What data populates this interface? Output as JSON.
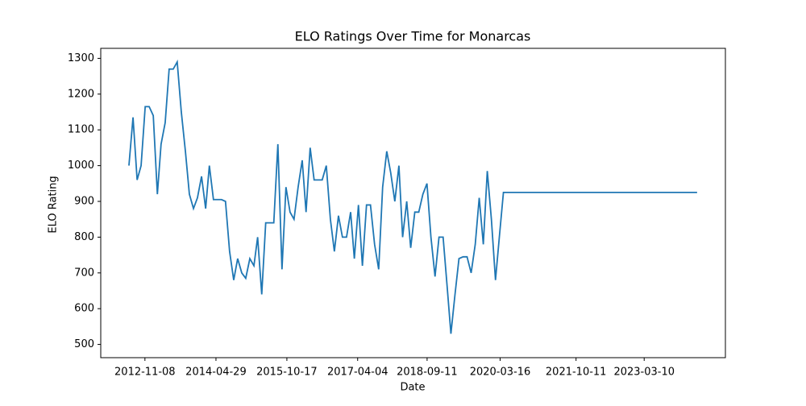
{
  "chart_data": {
    "type": "line",
    "title": "ELO Ratings Over Time for Monarcas",
    "x_label": "Date",
    "y_label": "ELO Rating",
    "x": [
      "2012-07-10",
      "2012-08-10",
      "2012-09-10",
      "2012-10-10",
      "2012-11-10",
      "2012-12-10",
      "2013-01-10",
      "2013-02-10",
      "2013-03-10",
      "2013-04-10",
      "2013-05-10",
      "2013-06-10",
      "2013-07-10",
      "2013-08-10",
      "2013-09-10",
      "2013-10-10",
      "2013-11-10",
      "2013-12-10",
      "2014-01-10",
      "2014-02-10",
      "2014-03-10",
      "2014-04-10",
      "2014-05-10",
      "2014-06-10",
      "2014-07-10",
      "2014-08-10",
      "2014-09-10",
      "2014-10-10",
      "2014-11-10",
      "2014-12-10",
      "2015-01-10",
      "2015-02-10",
      "2015-03-10",
      "2015-04-10",
      "2015-05-10",
      "2015-06-10",
      "2015-07-10",
      "2015-08-10",
      "2015-09-10",
      "2015-10-10",
      "2015-11-10",
      "2015-12-10",
      "2016-01-10",
      "2016-02-10",
      "2016-03-10",
      "2016-04-10",
      "2016-05-10",
      "2016-06-10",
      "2016-07-10",
      "2016-08-10",
      "2016-09-10",
      "2016-10-10",
      "2016-11-10",
      "2016-12-10",
      "2017-01-10",
      "2017-02-10",
      "2017-03-10",
      "2017-04-10",
      "2017-05-10",
      "2017-06-10",
      "2017-07-10",
      "2017-08-10",
      "2017-09-10",
      "2017-10-10",
      "2017-11-10",
      "2017-12-10",
      "2018-01-10",
      "2018-02-10",
      "2018-03-10",
      "2018-04-10",
      "2018-05-10",
      "2018-06-10",
      "2018-07-10",
      "2018-08-10",
      "2018-09-10",
      "2018-10-10",
      "2018-11-10",
      "2018-12-10",
      "2019-01-10",
      "2019-02-10",
      "2019-03-10",
      "2019-04-10",
      "2019-05-10",
      "2019-06-10",
      "2019-07-10",
      "2019-08-10",
      "2019-09-10",
      "2019-10-10",
      "2019-11-10",
      "2019-12-10",
      "2020-01-10",
      "2020-02-10",
      "2020-03-10",
      "2020-04-10",
      "2024-04-13"
    ],
    "series": [
      {
        "name": "Monarcas",
        "color": "#1f77b4",
        "values": [
          1000,
          1135,
          960,
          1000,
          1165,
          1165,
          1140,
          920,
          1060,
          1120,
          1270,
          1270,
          1290,
          1150,
          1040,
          920,
          880,
          910,
          970,
          880,
          1000,
          905,
          905,
          905,
          900,
          760,
          680,
          740,
          700,
          685,
          740,
          720,
          800,
          640,
          840,
          840,
          840,
          1060,
          710,
          940,
          870,
          850,
          940,
          1015,
          870,
          1050,
          960,
          960,
          960,
          1000,
          850,
          760,
          860,
          800,
          800,
          870,
          740,
          890,
          720,
          890,
          890,
          780,
          710,
          940,
          1040,
          980,
          900,
          1000,
          800,
          900,
          770,
          870,
          870,
          920,
          950,
          800,
          690,
          800,
          800,
          660,
          530,
          640,
          740,
          745,
          745,
          700,
          780,
          910,
          780,
          985,
          850,
          680,
          800,
          925,
          925
        ]
      }
    ],
    "xlim": [
      "2011-12-10",
      "2024-11-13"
    ],
    "xticks": [
      "2012-11-08",
      "2014-04-29",
      "2015-10-17",
      "2017-04-04",
      "2018-09-11",
      "2020-03-16",
      "2021-10-11",
      "2023-03-10"
    ],
    "ylim": [
      463,
      1328
    ],
    "yticks": [
      500,
      600,
      700,
      800,
      900,
      1000,
      1100,
      1200,
      1300
    ]
  }
}
